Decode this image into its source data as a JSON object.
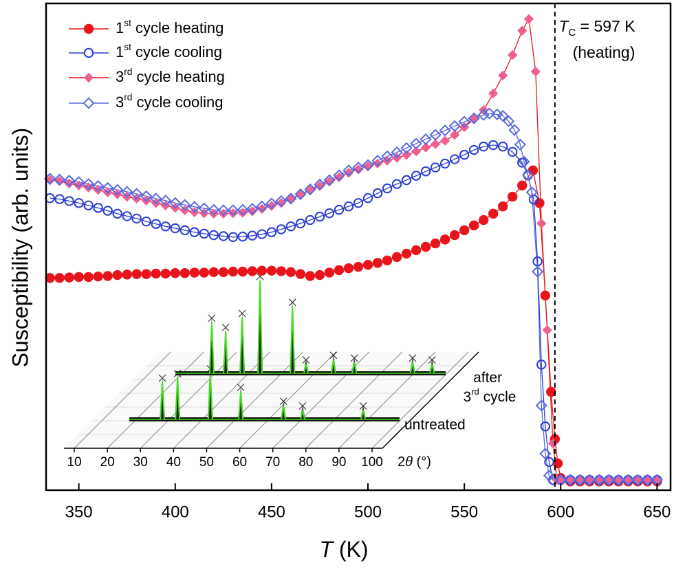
{
  "chart_data": {
    "type": "scatter-line",
    "xlabel": "T (K)",
    "ylabel": "Susceptibility (arb. units)",
    "xlim": [
      333,
      657
    ],
    "ylim": [
      0,
      100
    ],
    "xticks": [
      350,
      400,
      450,
      500,
      550,
      600,
      650
    ],
    "legend": "upper left",
    "vline": {
      "value": 597,
      "label": "TC = 597 K"
    },
    "vline_note": "(heating)",
    "series": [
      {
        "name": "1st cycle heating",
        "color": "#e8141c",
        "line_color": "#e8141c",
        "marker": "circle",
        "filled": true,
        "x": [
          335,
          340,
          345,
          350,
          355,
          360,
          365,
          370,
          375,
          380,
          385,
          390,
          395,
          400,
          405,
          410,
          415,
          420,
          425,
          430,
          435,
          440,
          445,
          450,
          455,
          460,
          465,
          470,
          475,
          480,
          485,
          490,
          495,
          500,
          505,
          510,
          515,
          520,
          525,
          530,
          535,
          540,
          545,
          550,
          555,
          560,
          565,
          570,
          575,
          580,
          585.6,
          589,
          592,
          595,
          597,
          598.5,
          600,
          605,
          610,
          615,
          620,
          625,
          630,
          635,
          640,
          645,
          650
        ],
        "values": [
          43.6,
          43.6,
          43.7,
          43.8,
          43.8,
          43.9,
          44.0,
          44.2,
          44.3,
          44.4,
          44.4,
          44.5,
          44.5,
          44.6,
          44.6,
          44.7,
          44.7,
          44.8,
          44.8,
          44.9,
          44.9,
          45.0,
          45.1,
          45.1,
          45.0,
          44.8,
          44.4,
          44.0,
          44.2,
          44.7,
          45.2,
          45.6,
          45.9,
          46.3,
          46.7,
          47.2,
          47.9,
          48.6,
          49.3,
          50.0,
          50.7,
          51.5,
          52.4,
          53.4,
          54.4,
          55.5,
          56.8,
          58.3,
          60.3,
          62.6,
          65.7,
          59.0,
          40.0,
          20.2,
          10.5,
          5.5,
          2.5,
          1.8,
          1.8,
          1.8,
          1.8,
          1.8,
          1.8,
          1.8,
          1.8,
          1.8,
          1.8
        ]
      },
      {
        "name": "1st cycle cooling",
        "color": "#2a3fd0",
        "line_color": "#2a3fd0",
        "marker": "circle",
        "filled": false,
        "x": [
          335,
          340,
          345,
          350,
          355,
          360,
          365,
          370,
          375,
          380,
          385,
          390,
          395,
          400,
          405,
          410,
          415,
          420,
          425,
          430,
          435,
          440,
          445,
          450,
          455,
          460,
          465,
          470,
          475,
          480,
          485,
          490,
          495,
          500,
          505,
          510,
          515,
          520,
          525,
          530,
          535,
          540,
          545,
          550,
          555,
          560,
          565,
          570,
          575,
          580,
          583,
          586,
          588,
          590,
          592,
          594,
          596,
          600,
          605,
          610,
          615,
          620,
          625,
          630,
          635,
          640,
          645,
          650
        ],
        "values": [
          60.0,
          59.8,
          59.4,
          59.0,
          58.5,
          58.0,
          57.4,
          56.8,
          56.3,
          55.8,
          55.2,
          54.7,
          54.2,
          53.8,
          53.4,
          53.0,
          52.7,
          52.4,
          52.2,
          52.0,
          52.1,
          52.3,
          52.6,
          53.0,
          53.6,
          54.2,
          54.8,
          55.5,
          56.2,
          56.9,
          57.6,
          58.3,
          59.0,
          60.0,
          61.0,
          62.0,
          62.9,
          63.7,
          64.6,
          65.5,
          66.3,
          67.1,
          68.0,
          68.9,
          69.9,
          70.6,
          70.9,
          70.6,
          69.5,
          67.3,
          64.7,
          59.7,
          47.0,
          25.8,
          13.1,
          5.8,
          2.1,
          2.1,
          2.1,
          2.1,
          2.1,
          2.1,
          2.1,
          2.1,
          2.1,
          2.1,
          2.1,
          2.1
        ]
      },
      {
        "name": "3rd cycle heating",
        "color": "#f0608e",
        "line_color": "#e8141c",
        "marker": "diamond",
        "filled": true,
        "x": [
          335,
          340,
          345,
          350,
          355,
          360,
          365,
          370,
          375,
          380,
          385,
          390,
          395,
          400,
          405,
          410,
          415,
          420,
          425,
          430,
          435,
          440,
          445,
          450,
          455,
          460,
          465,
          470,
          475,
          480,
          485,
          490,
          495,
          500,
          505,
          510,
          515,
          520,
          525,
          530,
          535,
          540,
          545,
          550,
          555,
          560,
          565,
          570,
          575,
          580,
          583.5,
          587,
          590,
          593,
          596,
          598,
          600,
          605,
          610,
          615,
          620,
          625,
          630,
          635,
          640,
          645,
          650
        ],
        "values": [
          63.7,
          63.5,
          63.0,
          62.6,
          62.2,
          61.7,
          61.2,
          60.8,
          60.3,
          59.9,
          59.5,
          59.0,
          58.5,
          58.0,
          57.5,
          57.1,
          56.9,
          56.8,
          56.8,
          56.9,
          57.0,
          57.3,
          57.8,
          58.4,
          59.0,
          59.8,
          60.7,
          61.6,
          62.5,
          63.4,
          64.3,
          65.2,
          65.9,
          66.5,
          67.1,
          67.7,
          68.3,
          68.9,
          69.6,
          70.4,
          71.1,
          71.8,
          73.0,
          74.6,
          76.2,
          78.1,
          81.5,
          85.2,
          89.4,
          94.4,
          96.8,
          86.0,
          54.8,
          32.9,
          9.6,
          2.1,
          2.1,
          2.1,
          2.1,
          2.1,
          2.1,
          2.1,
          2.1,
          2.1,
          2.1,
          2.1,
          2.1
        ]
      },
      {
        "name": "3rd cycle cooling",
        "color": "#5a6ae0",
        "line_color": "#5a6ae0",
        "marker": "diamond",
        "filled": false,
        "x": [
          335,
          340,
          345,
          350,
          355,
          360,
          365,
          370,
          375,
          380,
          385,
          390,
          395,
          400,
          405,
          410,
          415,
          420,
          425,
          430,
          435,
          440,
          445,
          450,
          455,
          460,
          465,
          470,
          475,
          480,
          485,
          490,
          495,
          500,
          505,
          510,
          515,
          520,
          525,
          530,
          535,
          540,
          545,
          550,
          555,
          560,
          563,
          567,
          570,
          573,
          576,
          579,
          581,
          583,
          585,
          588,
          590,
          592,
          594,
          596,
          600,
          605,
          610,
          615,
          620,
          625,
          630,
          635,
          640,
          645,
          650
        ],
        "values": [
          64.0,
          63.8,
          63.6,
          63.3,
          62.9,
          62.5,
          62.1,
          61.7,
          61.3,
          60.9,
          60.4,
          59.9,
          59.5,
          59.0,
          58.6,
          58.2,
          57.9,
          57.6,
          57.5,
          57.5,
          57.6,
          57.8,
          58.3,
          58.9,
          59.4,
          59.9,
          60.8,
          61.8,
          62.8,
          63.7,
          64.7,
          65.7,
          66.3,
          66.8,
          67.7,
          68.6,
          69.4,
          70.3,
          71.2,
          72.1,
          73.0,
          73.9,
          74.8,
          75.7,
          76.4,
          77.1,
          77.4,
          77.2,
          76.9,
          75.8,
          74.0,
          71.0,
          67.5,
          64.7,
          61.2,
          44.9,
          17.4,
          7.5,
          3.0,
          2.1,
          2.1,
          2.1,
          2.1,
          2.1,
          2.1,
          2.1,
          2.1,
          2.1,
          2.1,
          2.1,
          2.1
        ]
      }
    ],
    "inset": {
      "type": "xrd",
      "xlabel": "2θ (°)",
      "xlim": [
        10,
        100
      ],
      "xticks": [
        10,
        20,
        30,
        40,
        50,
        60,
        70,
        80,
        90,
        100
      ],
      "ylim": [
        0,
        100
      ],
      "series": [
        {
          "name": "untreated",
          "color": "#44dd22",
          "x": [
            28.3,
            32.9,
            42.8,
            52.0,
            64.9,
            70.7,
            89.0
          ],
          "values": [
            40,
            45,
            50,
            30,
            15,
            10,
            10
          ]
        },
        {
          "name": "after 3rd cycle",
          "color": "#44dd22",
          "x": [
            29.3,
            33.5,
            38.5,
            43.9,
            53.7,
            57.8,
            66.1,
            72.4,
            90.0,
            95.9
          ],
          "values": [
            55,
            45,
            60,
            100,
            72,
            10,
            15,
            12,
            12,
            10
          ]
        }
      ]
    }
  }
}
